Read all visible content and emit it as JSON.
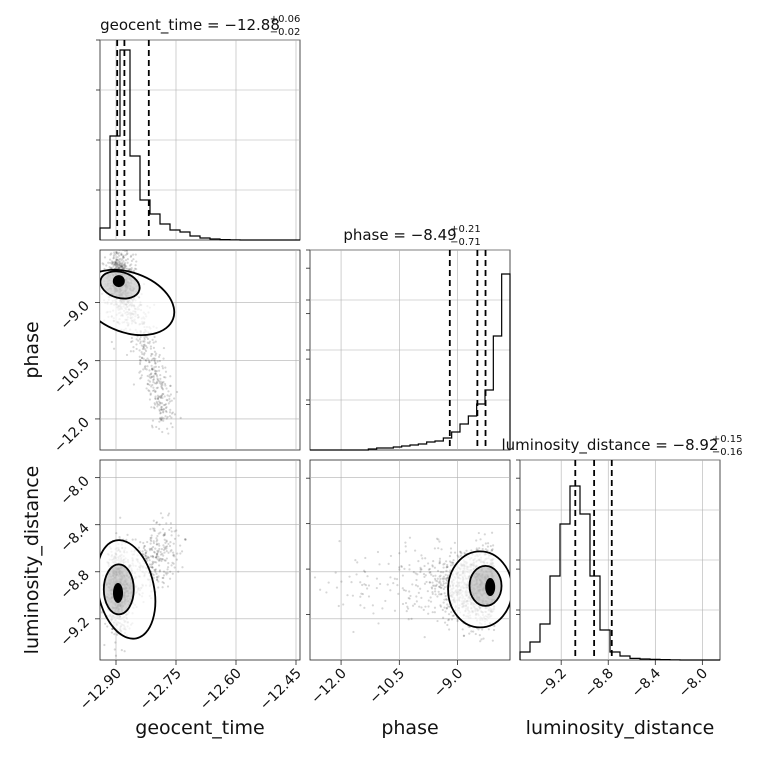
{
  "chart_data": {
    "type": "corner",
    "parameters": [
      "geocent_time",
      "phase",
      "luminosity_distance"
    ],
    "ranges": {
      "geocent_time": [
        -12.94,
        -12.44
      ],
      "phase": [
        -12.8,
        -7.65
      ],
      "luminosity_distance": [
        -9.55,
        -7.85
      ]
    },
    "ticks": {
      "geocent_time": [
        "-12.90",
        "-12.75",
        "-12.60",
        "-12.45"
      ],
      "phase": [
        "-12.0",
        "-10.5",
        "-9.0"
      ],
      "luminosity_distance": [
        "-9.2",
        "-8.8",
        "-8.4",
        "-8.0"
      ]
    },
    "tick_values": {
      "geocent_time": [
        -12.9,
        -12.75,
        -12.6,
        -12.45
      ],
      "phase": [
        -12.0,
        -10.5,
        -9.0
      ],
      "luminosity_distance": [
        -9.2,
        -8.8,
        -8.4,
        -8.0
      ]
    },
    "tick_text": {
      "geocent_time": [
        "−12.90",
        "−12.75",
        "−12.60",
        "−12.45"
      ],
      "phase": [
        "−12.0",
        "−10.5",
        "−9.0"
      ],
      "luminosity_distance": [
        "−9.2",
        "−8.8",
        "−8.4",
        "−8.0"
      ]
    },
    "titles": {
      "geocent_time": {
        "main": "geocent_time = −12.88",
        "sup": "+0.06",
        "sub": "−0.02"
      },
      "phase": {
        "main": "phase = −8.49",
        "sup": "+0.21",
        "sub": "−0.71"
      },
      "luminosity_distance": {
        "main": "luminosity_distance = −8.92",
        "sup": "+0.15",
        "sub": "−0.16"
      }
    },
    "quantiles": {
      "geocent_time": [
        -12.897,
        -12.879,
        -12.818
      ],
      "phase": [
        -9.2,
        -8.49,
        -8.28
      ],
      "luminosity_distance": [
        -9.08,
        -8.92,
        -8.77
      ]
    },
    "histograms": {
      "geocent_time": [
        0.06,
        0.52,
        0.95,
        0.42,
        0.2,
        0.13,
        0.08,
        0.05,
        0.04,
        0.02,
        0.01,
        0.005,
        0.002,
        0.001,
        0,
        0,
        0,
        0,
        0,
        0
      ],
      "phase": [
        0,
        0,
        0,
        0,
        0,
        0,
        0,
        0.005,
        0.01,
        0.01,
        0.015,
        0.02,
        0.025,
        0.03,
        0.04,
        0.045,
        0.06,
        0.09,
        0.13,
        0.17,
        0.23,
        0.3,
        0.57,
        0.88
      ],
      "luminosity_distance": [
        0.04,
        0.09,
        0.18,
        0.42,
        0.68,
        0.87,
        0.73,
        0.42,
        0.15,
        0.04,
        0.02,
        0.008,
        0.005,
        0.003,
        0.002,
        0.001,
        0,
        0,
        0,
        0
      ]
    },
    "xlabel": [
      "geocent_time",
      "phase",
      "luminosity_distance"
    ],
    "ylabel": [
      "",
      "phase",
      "luminosity_distance"
    ],
    "grid": true,
    "quantile_style": "dashed"
  }
}
